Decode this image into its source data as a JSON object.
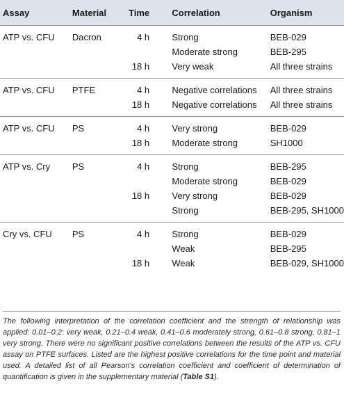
{
  "headers": {
    "assay": "Assay",
    "material": "Material",
    "time": "Time",
    "correlation": "Correlation",
    "organism": "Organism"
  },
  "groups": [
    {
      "rows": [
        {
          "assay": "ATP vs. CFU",
          "material": "Dacron",
          "time": "4 h",
          "correlation": "Strong",
          "organism": "BEB-029"
        },
        {
          "assay": "",
          "material": "",
          "time": "",
          "correlation": "Moderate strong",
          "organism": "BEB-295"
        },
        {
          "assay": "",
          "material": "",
          "time": "18 h",
          "correlation": "Very weak",
          "organism": "All three strains"
        }
      ]
    },
    {
      "rows": [
        {
          "assay": "ATP vs. CFU",
          "material": "PTFE",
          "time": "4 h",
          "correlation": "Negative correlations",
          "organism": "All three strains"
        },
        {
          "assay": "",
          "material": "",
          "time": "18 h",
          "correlation": "Negative correlations",
          "organism": "All three strains"
        }
      ]
    },
    {
      "rows": [
        {
          "assay": "ATP vs. CFU",
          "material": "PS",
          "time": "4 h",
          "correlation": "Very strong",
          "organism": "BEB-029"
        },
        {
          "assay": "",
          "material": "",
          "time": "18 h",
          "correlation": "Moderate strong",
          "organism": "SH1000"
        }
      ]
    },
    {
      "rows": [
        {
          "assay": "ATP vs. Cry",
          "material": "PS",
          "time": "4 h",
          "correlation": "Strong",
          "organism": "BEB-295"
        },
        {
          "assay": "",
          "material": "",
          "time": "",
          "correlation": "Moderate strong",
          "organism": "BEB-029"
        },
        {
          "assay": "",
          "material": "",
          "time": "18 h",
          "correlation": "Very strong",
          "organism": "BEB-029"
        },
        {
          "assay": "",
          "material": "",
          "time": "",
          "correlation": "Strong",
          "organism": "BEB-295, SH1000"
        }
      ]
    },
    {
      "rows": [
        {
          "assay": "Cry vs. CFU",
          "material": "PS",
          "time": "4 h",
          "correlation": "Strong",
          "organism": "BEB-029"
        },
        {
          "assay": "",
          "material": "",
          "time": "",
          "correlation": "Weak",
          "organism": "BEB-295"
        },
        {
          "assay": "",
          "material": "",
          "time": "18 h",
          "correlation": "Weak",
          "organism": "BEB-029, SH1000"
        }
      ]
    }
  ],
  "footnote": {
    "text": "The following interpretation of the correlation coefficient and the strength of relationship was applied: 0.01–0.2: very weak, 0.21–0.4 weak, 0.41–0.6 moderately strong, 0.61–0.8 strong, 0.81–1 very strong. There were no significant positive correlations between the results of the ATP vs. CFU assay on PTFE surfaces. Listed are the highest positive correlations for the time point and material used. A detailed list of all Pearson's correlation coefficient and coefficient of determination of quantification is given in the supplementary material (",
    "ref": "Table S1",
    "end": ")."
  }
}
